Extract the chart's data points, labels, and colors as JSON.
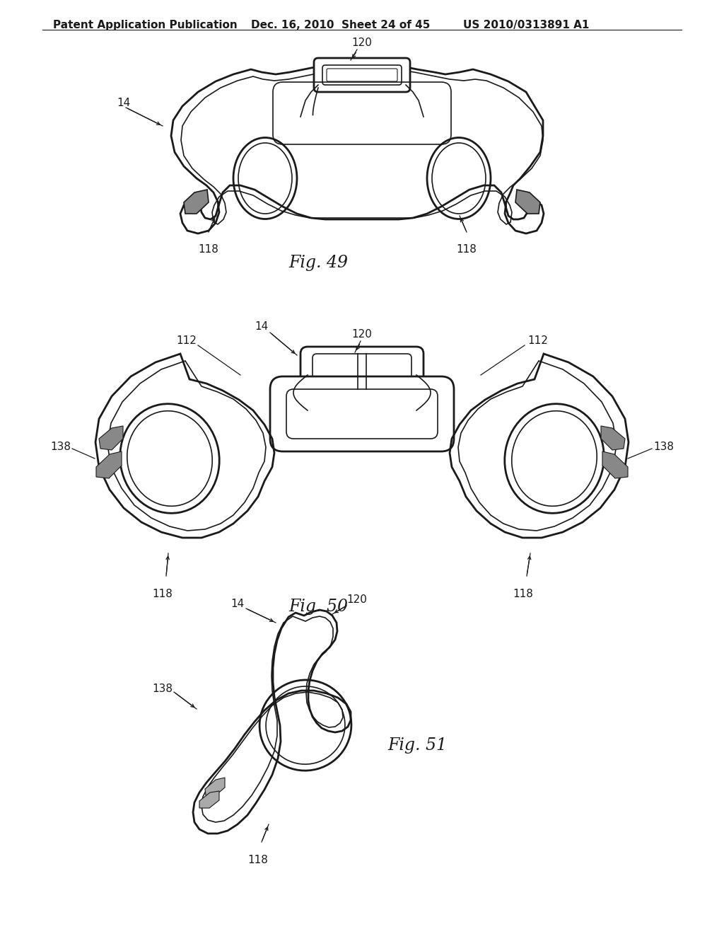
{
  "background_color": "#ffffff",
  "header_left": "Patent Application Publication",
  "header_mid": "Dec. 16, 2010  Sheet 24 of 45",
  "header_right": "US 2010/0313891 A1",
  "fig49_caption": "Fig. 49",
  "fig50_caption": "Fig. 50",
  "fig51_caption": "Fig. 51",
  "line_color": "#1a1a1a",
  "lw_outer": 2.0,
  "lw_inner": 1.2,
  "lw_thin": 0.8,
  "label_fontsize": 11,
  "caption_fontsize": 17,
  "header_fontsize": 11
}
